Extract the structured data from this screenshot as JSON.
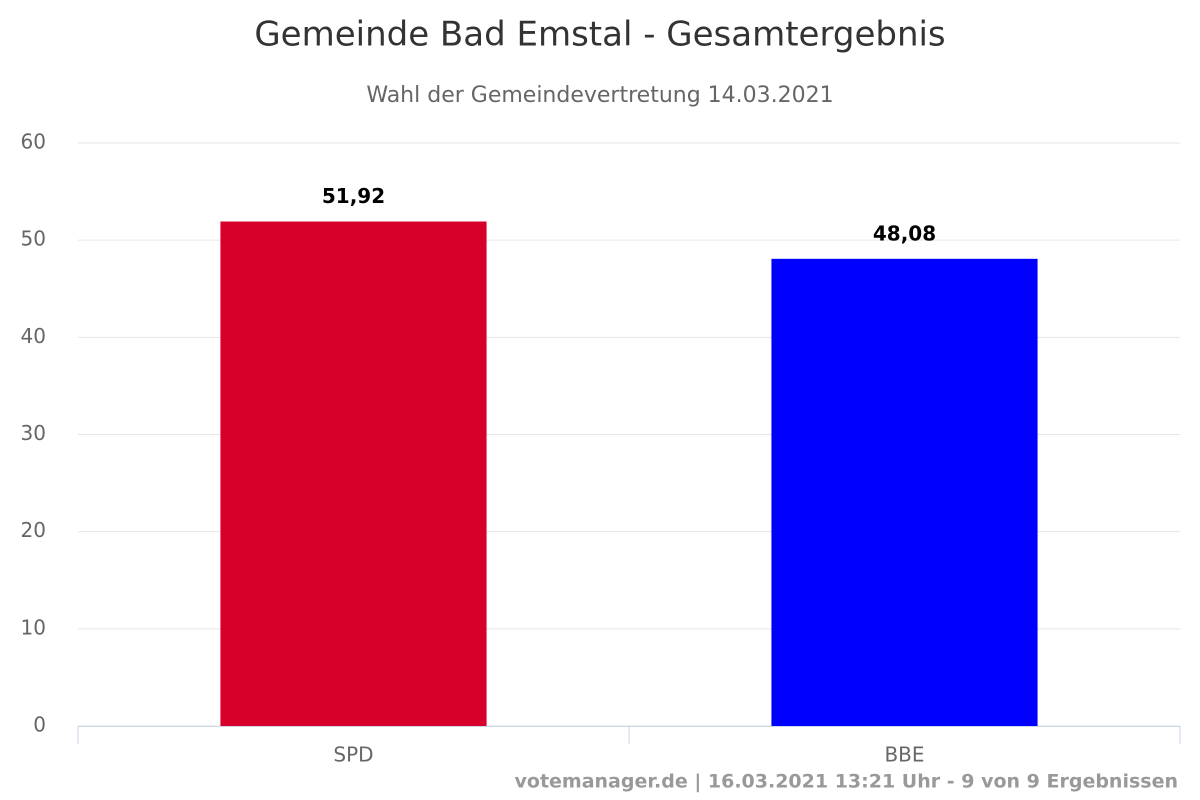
{
  "chart_data": {
    "type": "bar",
    "title": "Gemeinde Bad Emstal - Gesamtergebnis",
    "subtitle": "Wahl der Gemeindevertretung 14.03.2021",
    "categories": [
      "SPD",
      "BBE"
    ],
    "values": [
      51.92,
      48.08
    ],
    "value_labels": [
      "51,92",
      "48,08"
    ],
    "colors": [
      "#d7002b",
      "#0000ff"
    ],
    "ylim": [
      0,
      60
    ],
    "yticks": [
      0,
      10,
      20,
      30,
      40,
      50,
      60
    ],
    "grid": true,
    "credits": "votemanager.de | 16.03.2021 13:21 Uhr - 9 von 9 Ergebnissen"
  }
}
